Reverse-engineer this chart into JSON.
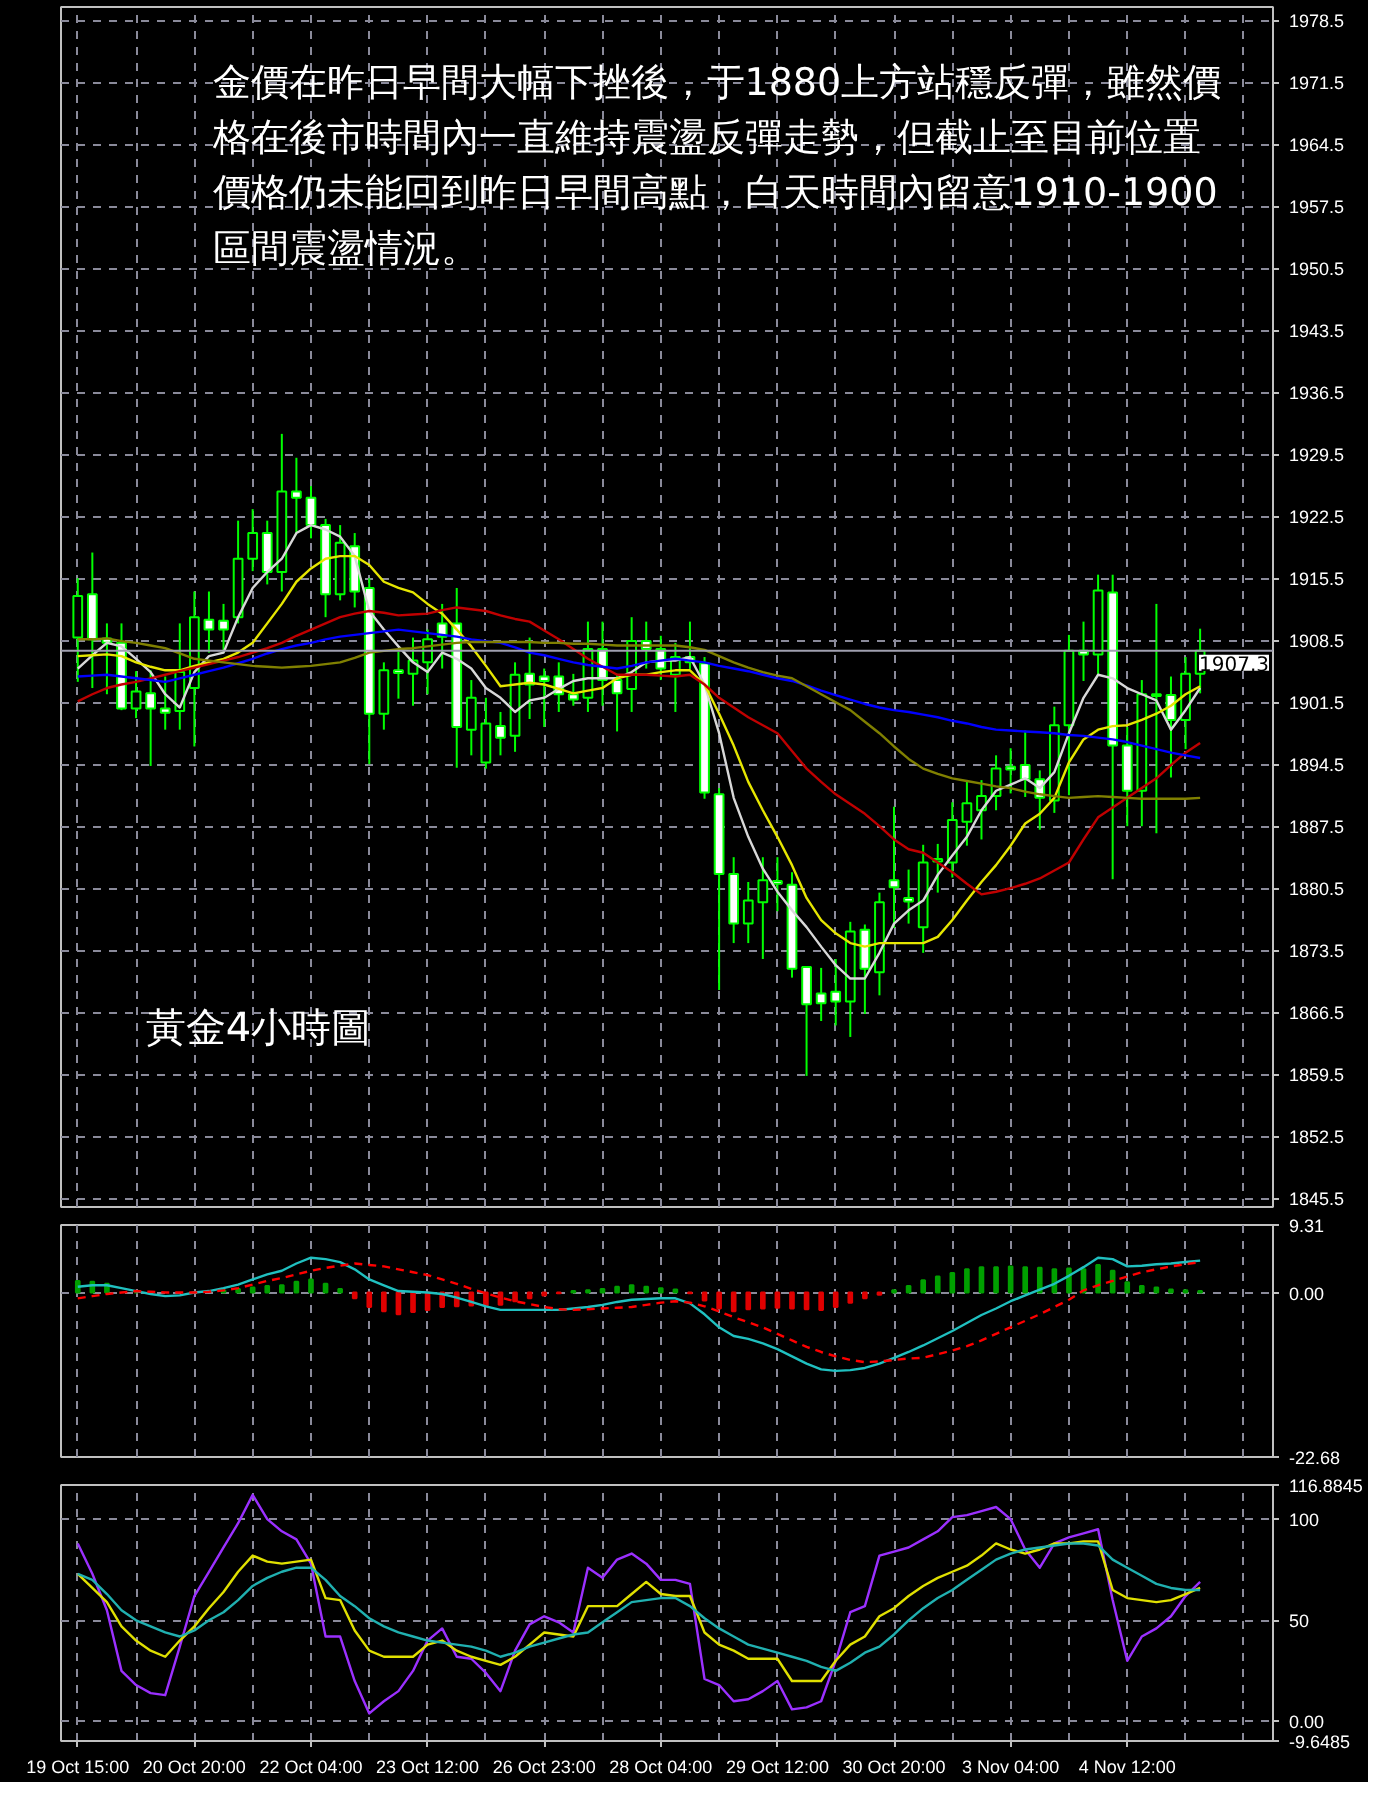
{
  "chart_data": [
    {
      "type": "candlestick",
      "categories": [
        null,
        null,
        null,
        null,
        null,
        null,
        null,
        null,
        null,
        null,
        null,
        null,
        null,
        null,
        null,
        null,
        null,
        null,
        null,
        null,
        null,
        null,
        null,
        null,
        null,
        null,
        null,
        null,
        null,
        null,
        null,
        null,
        null,
        null,
        null,
        null,
        null,
        null,
        null,
        null,
        null,
        null,
        null,
        null,
        null,
        null,
        null,
        null,
        null,
        null,
        null,
        null,
        null,
        null,
        null,
        null,
        null,
        null,
        null,
        null,
        null,
        null,
        null,
        null,
        null,
        null,
        null,
        null,
        null,
        null,
        null,
        null,
        null,
        null,
        null,
        null,
        null,
        null
      ],
      "ohlc": [
        [
          1908.8,
          1915.5,
          1903.8,
          1913.5
        ],
        [
          1913.7,
          1918.4,
          1903.1,
          1908.6
        ],
        [
          1908.7,
          1910.4,
          1902.4,
          1908.2
        ],
        [
          1908.2,
          1910.4,
          1900.6,
          1900.8
        ],
        [
          1900.8,
          1905.0,
          1899.7,
          1902.7
        ],
        [
          1902.5,
          1905.1,
          1894.3,
          1900.8
        ],
        [
          1900.8,
          1904.4,
          1898.4,
          1900.3
        ],
        [
          1900.5,
          1910.4,
          1898.4,
          1904.9
        ],
        [
          1903.1,
          1914.0,
          1896.5,
          1911.1
        ],
        [
          1910.8,
          1914.0,
          1907.1,
          1909.7
        ],
        [
          1910.7,
          1912.6,
          1907.1,
          1909.7
        ],
        [
          1911.1,
          1922.0,
          1910.4,
          1917.7
        ],
        [
          1917.7,
          1923.3,
          1916.3,
          1920.6
        ],
        [
          1920.6,
          1922.0,
          1914.8,
          1916.2
        ],
        [
          1916.2,
          1931.8,
          1914.0,
          1925.3
        ],
        [
          1925.3,
          1929.1,
          1920.6,
          1924.6
        ],
        [
          1924.6,
          1925.9,
          1920.0,
          1921.5
        ],
        [
          1921.5,
          1922.2,
          1911.1,
          1913.7
        ],
        [
          1913.7,
          1921.5,
          1913.0,
          1919.5
        ],
        [
          1919.1,
          1920.6,
          1912.2,
          1914.0
        ],
        [
          1914.4,
          1915.5,
          1894.5,
          1900.2
        ],
        [
          1900.2,
          1906.0,
          1898.4,
          1905.1
        ],
        [
          1905.1,
          1907.2,
          1901.9,
          1904.8
        ],
        [
          1904.7,
          1908.8,
          1901.1,
          1906.2
        ],
        [
          1906.0,
          1909.7,
          1902.4,
          1908.6
        ],
        [
          1910.4,
          1912.6,
          1905.3,
          1908.9
        ],
        [
          1910.4,
          1914.4,
          1894.1,
          1898.7
        ],
        [
          1898.4,
          1904.0,
          1895.5,
          1902.0
        ],
        [
          1894.7,
          1902.0,
          1894.0,
          1899.1
        ],
        [
          1898.8,
          1900.4,
          1895.5,
          1897.5
        ],
        [
          1897.7,
          1906.0,
          1895.9,
          1904.6
        ],
        [
          1904.7,
          1908.8,
          1899.6,
          1903.5
        ],
        [
          1904.4,
          1905.3,
          1898.7,
          1903.9
        ],
        [
          1904.4,
          1906.0,
          1900.4,
          1902.4
        ],
        [
          1902.4,
          1904.7,
          1901.1,
          1901.8
        ],
        [
          1902.0,
          1910.6,
          1900.4,
          1907.5
        ],
        [
          1907.5,
          1910.6,
          1901.1,
          1904.0
        ],
        [
          1904.0,
          1904.7,
          1898.2,
          1902.5
        ],
        [
          1903.0,
          1911.1,
          1900.4,
          1908.4
        ],
        [
          1908.4,
          1910.6,
          1905.3,
          1907.5
        ],
        [
          1907.5,
          1909.0,
          1904.0,
          1905.3
        ],
        [
          1904.6,
          1908.2,
          1900.4,
          1906.6
        ],
        [
          1906.6,
          1910.6,
          1905.2,
          1906.0
        ],
        [
          1905.9,
          1906.6,
          1890.6,
          1891.3
        ],
        [
          1891.1,
          1891.8,
          1869.0,
          1882.1
        ],
        [
          1882.1,
          1884.0,
          1874.3,
          1876.5
        ],
        [
          1876.5,
          1881.2,
          1874.3,
          1879.1
        ],
        [
          1878.9,
          1884.0,
          1872.5,
          1881.4
        ],
        [
          1881.3,
          1884.0,
          1877.9,
          1881.0
        ],
        [
          1880.9,
          1882.3,
          1870.4,
          1871.4
        ],
        [
          1871.6,
          1871.6,
          1859.3,
          1867.4
        ],
        [
          1868.6,
          1871.5,
          1865.5,
          1867.5
        ],
        [
          1868.8,
          1872.5,
          1865.0,
          1867.7
        ],
        [
          1867.7,
          1876.7,
          1863.7,
          1875.6
        ],
        [
          1875.8,
          1876.4,
          1866.3,
          1871.4
        ],
        [
          1871.0,
          1880.0,
          1868.4,
          1878.9
        ],
        [
          1881.4,
          1889.7,
          1876.0,
          1880.6
        ],
        [
          1879.4,
          1882.6,
          1876.5,
          1879.0
        ],
        [
          1876.1,
          1885.4,
          1873.2,
          1883.4
        ],
        [
          1883.5,
          1885.5,
          1880.0,
          1883.8
        ],
        [
          1883.4,
          1890.2,
          1881.7,
          1888.2
        ],
        [
          1888.0,
          1892.7,
          1885.3,
          1890.1
        ],
        [
          1889.3,
          1892.7,
          1886.0,
          1890.9
        ],
        [
          1890.9,
          1895.5,
          1889.3,
          1894.0
        ],
        [
          1894.2,
          1896.3,
          1891.2,
          1893.9
        ],
        [
          1894.4,
          1898.3,
          1890.8,
          1892.8
        ],
        [
          1892.8,
          1893.8,
          1887.1,
          1890.7
        ],
        [
          1890.4,
          1901.0,
          1889.0,
          1898.9
        ],
        [
          1898.9,
          1909.1,
          1891.0,
          1907.3
        ],
        [
          1907.3,
          1910.6,
          1903.9,
          1906.9
        ],
        [
          1906.9,
          1915.9,
          1904.6,
          1914.1
        ],
        [
          1913.9,
          1915.9,
          1881.5,
          1896.6
        ],
        [
          1896.6,
          1898.7,
          1887.5,
          1891.5
        ],
        [
          1891.5,
          1904.0,
          1887.5,
          1902.4
        ],
        [
          1902.4,
          1912.6,
          1886.7,
          1902.2
        ],
        [
          1902.3,
          1904.4,
          1893.0,
          1899.5
        ],
        [
          1899.5,
          1906.6,
          1896.2,
          1904.7
        ],
        [
          1904.7,
          1909.8,
          1902.5,
          1907.3
        ]
      ],
      "series": [
        {
          "type": "line",
          "color": "#d8d8d8",
          "values": [
            1905.3,
            1906.8,
            1908.2,
            1907.8,
            1906.4,
            1904.9,
            1902.4,
            1900.9,
            1904.9,
            1906.7,
            1907.1,
            1911.1,
            1914.4,
            1916.2,
            1917.7,
            1920.6,
            1921.5,
            1921.0,
            1920.2,
            1918.0,
            1911.8,
            1909.7,
            1907.8,
            1906.0,
            1904.9,
            1907.1,
            1906.4,
            1905.3,
            1903.1,
            1902.0,
            1900.4,
            1901.7,
            1902.0,
            1903.0,
            1903.9,
            1904.2,
            1904.2,
            1904.2,
            1904.9,
            1906.0,
            1906.2,
            1906.2,
            1906.6,
            1903.5,
            1898.0,
            1890.7,
            1886.3,
            1882.7,
            1880.1,
            1878.0,
            1876.1,
            1873.9,
            1871.8,
            1870.3,
            1870.3,
            1873.2,
            1876.5,
            1878.0,
            1879.1,
            1882.0,
            1884.2,
            1886.3,
            1889.3,
            1891.5,
            1892.2,
            1892.9,
            1891.8,
            1893.6,
            1898.0,
            1902.0,
            1904.6,
            1904.2,
            1903.1,
            1902.4,
            1901.7,
            1898.4,
            1900.6,
            1903.1
          ]
        },
        {
          "type": "line",
          "color": "#e6e600",
          "values": [
            1906.7,
            1906.8,
            1906.9,
            1906.7,
            1906.0,
            1905.5,
            1905.1,
            1905.1,
            1905.6,
            1906.0,
            1906.4,
            1907.1,
            1908.2,
            1910.4,
            1912.6,
            1915.1,
            1916.6,
            1917.7,
            1918.0,
            1918.0,
            1917.0,
            1915.1,
            1914.4,
            1913.9,
            1912.6,
            1911.5,
            1909.7,
            1907.8,
            1905.6,
            1903.3,
            1903.5,
            1903.7,
            1903.5,
            1903.0,
            1902.5,
            1902.8,
            1903.1,
            1904.2,
            1904.6,
            1904.6,
            1904.9,
            1905.1,
            1905.1,
            1903.5,
            1900.2,
            1896.6,
            1892.5,
            1889.3,
            1886.3,
            1883.1,
            1879.4,
            1876.9,
            1875.4,
            1874.3,
            1873.9,
            1874.3,
            1874.3,
            1874.3,
            1874.3,
            1875.0,
            1876.9,
            1879.1,
            1881.2,
            1883.1,
            1885.3,
            1887.8,
            1888.9,
            1890.7,
            1894.7,
            1897.3,
            1898.4,
            1898.8,
            1898.9,
            1899.5,
            1900.2,
            1901.1,
            1902.4,
            1903.3
          ]
        },
        {
          "type": "line",
          "color": "#c00000",
          "values": [
            1901.6,
            1902.4,
            1903.1,
            1903.5,
            1903.8,
            1904.2,
            1904.6,
            1905.0,
            1905.4,
            1905.8,
            1906.2,
            1906.6,
            1907.1,
            1907.6,
            1908.2,
            1909.0,
            1909.7,
            1910.4,
            1911.1,
            1911.5,
            1911.8,
            1911.6,
            1911.3,
            1911.4,
            1911.5,
            1911.9,
            1912.2,
            1912.0,
            1911.8,
            1911.3,
            1910.9,
            1910.6,
            1909.6,
            1908.6,
            1907.5,
            1906.4,
            1905.5,
            1904.6,
            1904.6,
            1904.6,
            1904.5,
            1904.4,
            1904.6,
            1903.5,
            1902.0,
            1900.9,
            1899.8,
            1898.9,
            1898.0,
            1896.0,
            1894.0,
            1892.5,
            1891.1,
            1890.0,
            1888.9,
            1887.5,
            1886.0,
            1884.9,
            1884.5,
            1883.4,
            1882.3,
            1881.0,
            1879.8,
            1880.1,
            1880.5,
            1881.0,
            1881.6,
            1882.5,
            1883.4,
            1886.0,
            1888.5,
            1889.6,
            1890.7,
            1891.8,
            1892.9,
            1894.4,
            1895.8,
            1896.9
          ]
        },
        {
          "type": "line",
          "color": "#0000ff",
          "values": [
            1904.4,
            1904.5,
            1904.6,
            1904.4,
            1904.2,
            1904.0,
            1903.8,
            1904.2,
            1904.6,
            1905.0,
            1905.4,
            1905.9,
            1906.4,
            1907.0,
            1907.5,
            1907.9,
            1908.2,
            1908.6,
            1908.9,
            1909.1,
            1909.3,
            1909.5,
            1909.7,
            1909.5,
            1909.3,
            1909.1,
            1908.9,
            1908.6,
            1908.4,
            1908.2,
            1907.7,
            1907.1,
            1906.8,
            1906.4,
            1906.0,
            1905.7,
            1905.5,
            1905.3,
            1905.6,
            1906.0,
            1906.2,
            1906.4,
            1906.2,
            1906.0,
            1905.6,
            1905.3,
            1905.0,
            1904.6,
            1904.2,
            1903.9,
            1903.4,
            1902.8,
            1902.3,
            1901.8,
            1901.3,
            1900.9,
            1900.6,
            1900.4,
            1900.1,
            1899.8,
            1899.4,
            1899.1,
            1898.7,
            1898.4,
            1898.3,
            1898.2,
            1898.1,
            1898.0,
            1897.8,
            1897.7,
            1897.5,
            1897.3,
            1897.0,
            1896.6,
            1896.2,
            1895.8,
            1895.5,
            1895.2
          ]
        },
        {
          "type": "line",
          "color": "#808000",
          "values": [
            1908.6,
            1908.6,
            1908.7,
            1908.4,
            1908.2,
            1907.9,
            1907.6,
            1907.0,
            1906.4,
            1906.2,
            1906.0,
            1905.8,
            1905.6,
            1905.5,
            1905.4,
            1905.5,
            1905.6,
            1905.8,
            1906.0,
            1906.5,
            1907.1,
            1907.3,
            1907.5,
            1907.6,
            1907.8,
            1908.0,
            1908.2,
            1908.3,
            1908.3,
            1908.3,
            1908.3,
            1908.3,
            1908.2,
            1908.2,
            1908.1,
            1908.1,
            1908.0,
            1907.9,
            1907.9,
            1907.9,
            1907.9,
            1907.9,
            1907.7,
            1907.4,
            1906.7,
            1906.0,
            1905.4,
            1904.9,
            1904.5,
            1904.2,
            1903.3,
            1902.4,
            1901.5,
            1900.6,
            1899.3,
            1898.0,
            1896.5,
            1895.1,
            1894.0,
            1893.4,
            1892.9,
            1892.6,
            1892.3,
            1892.0,
            1891.8,
            1891.4,
            1891.1,
            1890.9,
            1890.7,
            1890.8,
            1890.9,
            1890.8,
            1890.7,
            1890.6,
            1890.6,
            1890.6,
            1890.6,
            1890.7
          ]
        }
      ],
      "ylim": [
        1844.5,
        1980.0
      ],
      "yticks": [
        1845.5,
        1852.5,
        1859.5,
        1866.5,
        1873.5,
        1880.5,
        1887.5,
        1894.5,
        1901.5,
        1908.5,
        1915.5,
        1922.5,
        1929.5,
        1936.5,
        1943.5,
        1950.5,
        1957.5,
        1964.5,
        1971.5,
        1978.5
      ],
      "ref_lines": [
        {
          "axis": "y",
          "value": 1907.3,
          "label": "1907.3",
          "color": "#a0a0b0"
        }
      ],
      "annotations": [
        "金價在昨日早間大幅下挫後，于1880上方站穩反彈，雖然價格在後市時間內一直維持震盪反彈走勢，但截止至目前位置價格仍未能回到昨日早間高點，白天時間內留意1910-1900區間震盪情況。",
        "黃金4小時圖"
      ],
      "grid": true,
      "tick_labels": "y"
    },
    {
      "type": "bar",
      "categories": [
        null,
        null,
        null,
        null,
        null,
        null,
        null,
        null,
        null,
        null,
        null,
        null,
        null,
        null,
        null,
        null,
        null,
        null,
        null,
        null,
        null,
        null,
        null,
        null,
        null,
        null,
        null,
        null,
        null,
        null,
        null,
        null,
        null,
        null,
        null,
        null,
        null,
        null,
        null,
        null,
        null,
        null,
        null,
        null,
        null,
        null,
        null,
        null,
        null,
        null,
        null,
        null,
        null,
        null,
        null,
        null,
        null,
        null,
        null,
        null,
        null,
        null,
        null,
        null,
        null,
        null,
        null,
        null,
        null,
        null,
        null,
        null,
        null,
        null,
        null,
        null,
        null,
        null
      ],
      "values": [
        1.6,
        1.5,
        1.2,
        null,
        0.0,
        null,
        null,
        null,
        0.0,
        null,
        0.3,
        0.5,
        0.7,
        0.9,
        1.0,
        1.5,
        1.8,
        1.2,
        0.5,
        -0.8,
        -2.0,
        -2.6,
        -3.0,
        -2.7,
        -2.4,
        -2.0,
        -1.9,
        -1.8,
        -1.8,
        -1.7,
        -1.2,
        -0.8,
        -0.4,
        -0.1,
        0.2,
        0.3,
        0.5,
        0.8,
        1.0,
        0.8,
        0.6,
        0.4,
        -0.1,
        -1.1,
        -2.2,
        -2.6,
        -2.3,
        -2.2,
        -2.1,
        -2.2,
        -2.3,
        -2.4,
        -2.0,
        -1.4,
        -0.8,
        -0.3,
        0.3,
        0.9,
        1.7,
        2.2,
        2.7,
        3.2,
        3.5,
        3.5,
        3.6,
        3.5,
        3.4,
        3.2,
        3.3,
        3.2,
        3.8,
        3.0,
        1.4,
        0.9,
        0.7,
        0.4,
        0.3,
        0.2
      ],
      "colors": [
        "#00a000",
        "#00a000",
        "#00a000",
        "#00a000",
        "#00a000",
        "#e00000",
        "#e00000",
        "#e00000",
        "#00a000",
        "#00a000",
        "#00a000",
        "#00a000",
        "#00a000",
        "#00a000",
        "#00a000",
        "#00a000",
        "#00a000",
        "#00a000",
        "#00a000",
        "#e00000",
        "#e00000",
        "#e00000",
        "#e00000",
        "#e00000",
        "#e00000",
        "#e00000",
        "#e00000",
        "#e00000",
        "#e00000",
        "#e00000",
        "#e00000",
        "#e00000",
        "#e00000",
        "#e00000",
        "#00a000",
        "#00a000",
        "#00a000",
        "#00a000",
        "#00a000",
        "#00a000",
        "#00a000",
        "#00a000",
        "#e00000",
        "#e00000",
        "#e00000",
        "#e00000",
        "#e00000",
        "#e00000",
        "#e00000",
        "#e00000",
        "#e00000",
        "#e00000",
        "#e00000",
        "#e00000",
        "#e00000",
        "#e00000",
        "#00a000",
        "#00a000",
        "#00a000",
        "#00a000",
        "#00a000",
        "#00a000",
        "#00a000",
        "#00a000",
        "#00a000",
        "#00a000",
        "#00a000",
        "#00a000",
        "#00a000",
        "#00a000",
        "#00a000",
        "#00a000",
        "#00a000",
        "#00a000",
        "#00a000",
        "#00a000",
        "#00a000",
        "#00a000"
      ],
      "series": [
        {
          "type": "line",
          "color": "#20c0c0",
          "values": [
            0.8,
            1.0,
            1.0,
            0.6,
            0.2,
            -0.2,
            -0.5,
            -0.4,
            0.0,
            0.2,
            0.6,
            1.1,
            1.8,
            2.5,
            3.0,
            4.0,
            4.8,
            4.6,
            4.2,
            3.2,
            1.8,
            1.0,
            0.2,
            0.1,
            0.0,
            -0.2,
            -0.7,
            -1.3,
            -1.9,
            -2.4,
            -2.4,
            -2.4,
            -2.4,
            -2.4,
            -2.2,
            -2.0,
            -1.7,
            -1.3,
            -1.0,
            -0.9,
            -0.8,
            -0.8,
            -1.5,
            -3.0,
            -4.8,
            -6.0,
            -6.4,
            -7.0,
            -7.8,
            -8.8,
            -9.8,
            -10.6,
            -10.8,
            -10.7,
            -10.4,
            -9.8,
            -9.0,
            -8.2,
            -7.3,
            -6.3,
            -5.3,
            -4.2,
            -3.1,
            -2.2,
            -1.2,
            -0.4,
            0.4,
            1.2,
            2.3,
            3.5,
            4.8,
            4.6,
            3.6,
            3.7,
            3.9,
            4.0,
            4.2,
            4.4
          ]
        },
        {
          "type": "line",
          "color": "#ff0000",
          "line_style": "dashed",
          "values": [
            -0.8,
            -0.5,
            -0.2,
            0.0,
            0.2,
            0.1,
            0.0,
            0.0,
            0.0,
            0.1,
            0.3,
            0.6,
            1.1,
            1.6,
            2.0,
            2.5,
            3.0,
            3.4,
            3.7,
            4.0,
            3.8,
            3.6,
            3.2,
            2.8,
            2.4,
            1.8,
            1.2,
            0.5,
            -0.1,
            -0.7,
            -1.2,
            -1.6,
            -2.0,
            -2.3,
            -2.4,
            -2.3,
            -2.2,
            -2.1,
            -2.0,
            -1.7,
            -1.4,
            -1.2,
            -1.4,
            -1.9,
            -2.6,
            -3.4,
            -4.1,
            -4.8,
            -5.7,
            -6.6,
            -7.5,
            -8.2,
            -8.8,
            -9.3,
            -9.6,
            -9.5,
            -9.3,
            -9.1,
            -9.0,
            -8.5,
            -8.0,
            -7.4,
            -6.6,
            -5.7,
            -4.8,
            -3.9,
            -3.0,
            -2.0,
            -1.0,
            0.3,
            1.0,
            1.6,
            2.2,
            2.8,
            3.2,
            3.6,
            3.9,
            4.2
          ]
        }
      ],
      "ylim": [
        -22.68,
        9.31
      ],
      "yticks": [
        9.31,
        {
          "value": 0,
          "label": "0.00"
        },
        -22.68
      ],
      "grid": true,
      "tick_labels": "y"
    },
    {
      "type": "line",
      "categories": [
        "19 Oct 15:00",
        null,
        null,
        null,
        null,
        null,
        null,
        null,
        "20 Oct 20:00",
        null,
        null,
        null,
        null,
        null,
        null,
        null,
        "22 Oct 04:00",
        null,
        null,
        null,
        null,
        null,
        null,
        null,
        "23 Oct 12:00",
        null,
        null,
        null,
        null,
        null,
        null,
        null,
        "26 Oct 23:00",
        null,
        null,
        null,
        null,
        null,
        null,
        null,
        "28 Oct 04:00",
        null,
        null,
        null,
        null,
        null,
        null,
        null,
        "29 Oct 12:00",
        null,
        null,
        null,
        null,
        null,
        null,
        null,
        "30 Oct 20:00",
        null,
        null,
        null,
        null,
        null,
        null,
        null,
        "3 Nov 04:00",
        null,
        null,
        null,
        null,
        null,
        null,
        null,
        "4 Nov 12:00",
        null,
        null,
        null,
        null,
        null
      ],
      "series": [
        {
          "color": "#9b30ff",
          "values": [
            88,
            73,
            55,
            25,
            18,
            14,
            13,
            37,
            62,
            74,
            86,
            98,
            112,
            100,
            94,
            90,
            78,
            42,
            42,
            20,
            4,
            10,
            15,
            25,
            40,
            46,
            32,
            31,
            24,
            15,
            35,
            48,
            52,
            49,
            44,
            76,
            71,
            80,
            83,
            78,
            70,
            70,
            68,
            21,
            18,
            10,
            11,
            15,
            20,
            6,
            7,
            10,
            30,
            54,
            57,
            82,
            84,
            86,
            90,
            94,
            101,
            102,
            104,
            106,
            100,
            85,
            76,
            88,
            91,
            93,
            95,
            60,
            30,
            42,
            46,
            52,
            62,
            69
          ]
        },
        {
          "color": "#e0e000",
          "values": [
            73,
            66,
            59,
            47,
            40,
            35,
            32,
            40,
            47,
            56,
            64,
            74,
            82,
            79,
            78,
            79,
            80,
            61,
            60,
            45,
            35,
            32,
            32,
            32,
            38,
            40,
            35,
            32,
            30,
            28,
            32,
            38,
            44,
            43,
            42,
            57,
            57,
            57,
            63,
            69,
            63,
            62,
            62,
            44,
            38,
            35,
            31,
            31,
            31,
            20,
            20,
            20,
            30,
            38,
            42,
            52,
            56,
            62,
            67,
            71,
            74,
            77,
            82,
            88,
            85,
            83,
            85,
            88,
            88,
            89,
            89,
            65,
            61,
            60,
            59,
            60,
            63,
            66
          ]
        },
        {
          "color": "#20b0b0",
          "values": [
            73,
            70,
            63,
            55,
            50,
            47,
            44,
            42,
            45,
            50,
            54,
            60,
            67,
            71,
            74,
            76,
            76,
            70,
            62,
            57,
            51,
            47,
            44,
            42,
            40,
            39,
            38,
            37,
            35,
            32,
            34,
            37,
            39,
            41,
            43,
            44,
            49,
            54,
            59,
            60,
            61,
            61,
            57,
            51,
            46,
            42,
            38,
            36,
            34,
            32,
            30,
            27,
            25,
            29,
            34,
            37,
            43,
            50,
            56,
            61,
            65,
            70,
            75,
            80,
            83,
            85,
            86,
            87,
            88,
            88,
            87,
            80,
            76,
            72,
            68,
            66,
            65,
            65
          ]
        }
      ],
      "ylim": [
        -9.6485,
        116.8845
      ],
      "yticks": [
        116.8845,
        100,
        50,
        {
          "value": 0,
          "label": "0.00"
        },
        -9.6485
      ],
      "grid": true
    }
  ]
}
